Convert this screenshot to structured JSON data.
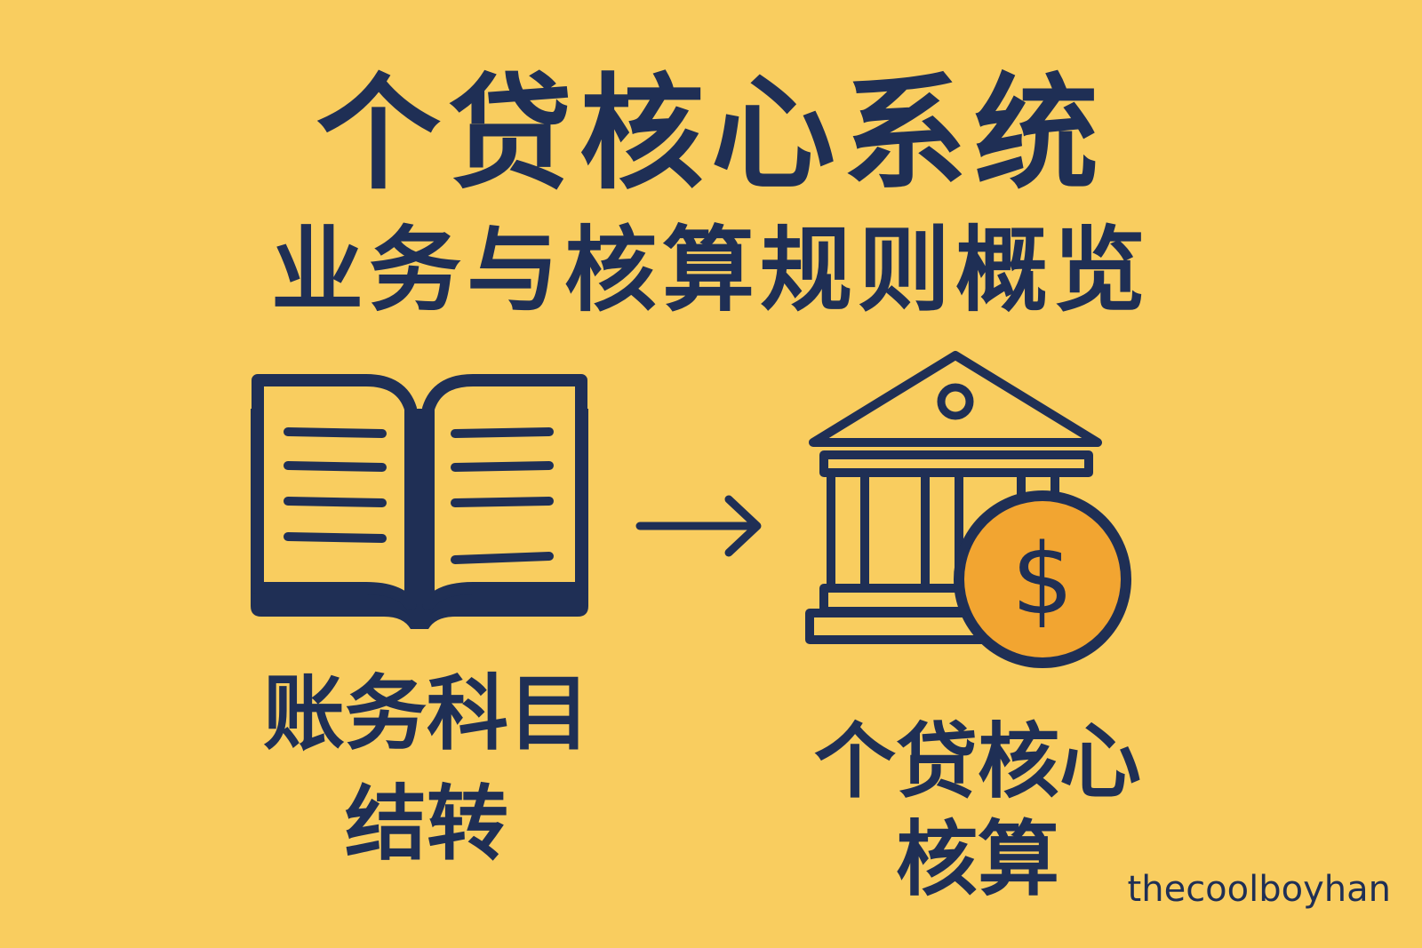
{
  "colors": {
    "background": "#F9CD5F",
    "ink": "#1F2F55",
    "coin": "#F2A531"
  },
  "header": {
    "title": "个贷核心系统",
    "subtitle": "业务与核算规则概览"
  },
  "left": {
    "icon": "open-book-icon",
    "line1": "账务科目",
    "line2": "结转"
  },
  "arrow": {
    "icon": "arrow-right-icon"
  },
  "right": {
    "icon": "bank-building-icon",
    "coin_icon": "dollar-coin-icon",
    "coin_symbol": "$",
    "line1": "个贷核心",
    "line2": "核算"
  },
  "watermark": "thecoolboyhan"
}
